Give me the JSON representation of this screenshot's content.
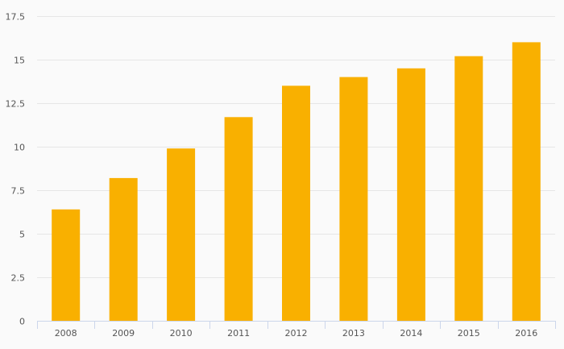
{
  "chart_data": {
    "type": "bar",
    "categories": [
      "2008",
      "2009",
      "2010",
      "2011",
      "2012",
      "2013",
      "2014",
      "2015",
      "2016"
    ],
    "series": [
      {
        "values": [
          6.4,
          8.2,
          9.9,
          11.7,
          13.5,
          14.0,
          14.5,
          15.2,
          16.0
        ]
      }
    ],
    "ylim": [
      0,
      17.5
    ],
    "yticks": [
      0,
      2.5,
      5,
      7.5,
      10,
      12.5,
      15,
      17.5
    ],
    "ytick_labels": [
      "0",
      "2.5",
      "5",
      "7.5",
      "10",
      "12.5",
      "15",
      "17.5"
    ],
    "grid": true,
    "legend": "none",
    "colors": {
      "bar": "#f9b000",
      "grid": "#e6e6e6",
      "axis": "#ccd6eb",
      "text": "#555555"
    }
  }
}
